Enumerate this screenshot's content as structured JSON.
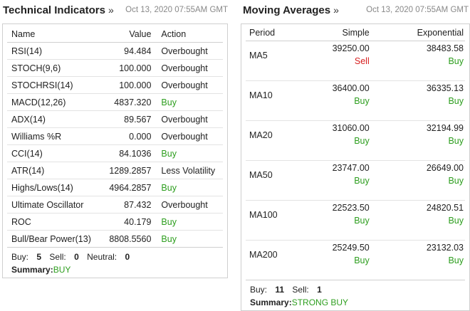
{
  "technical": {
    "title": "Technical Indicators",
    "arrow": "»",
    "timestamp": "Oct 13, 2020 07:55AM GMT",
    "headers": {
      "name": "Name",
      "value": "Value",
      "action": "Action"
    },
    "rows": [
      {
        "name": "RSI(14)",
        "value": "94.484",
        "action": "Overbought",
        "type": "neutral"
      },
      {
        "name": "STOCH(9,6)",
        "value": "100.000",
        "action": "Overbought",
        "type": "neutral"
      },
      {
        "name": "STOCHRSI(14)",
        "value": "100.000",
        "action": "Overbought",
        "type": "neutral"
      },
      {
        "name": "MACD(12,26)",
        "value": "4837.320",
        "action": "Buy",
        "type": "buy"
      },
      {
        "name": "ADX(14)",
        "value": "89.567",
        "action": "Overbought",
        "type": "neutral"
      },
      {
        "name": "Williams %R",
        "value": "0.000",
        "action": "Overbought",
        "type": "neutral"
      },
      {
        "name": "CCI(14)",
        "value": "84.1036",
        "action": "Buy",
        "type": "buy"
      },
      {
        "name": "ATR(14)",
        "value": "1289.2857",
        "action": "Less Volatility",
        "type": "neutral"
      },
      {
        "name": "Highs/Lows(14)",
        "value": "4964.2857",
        "action": "Buy",
        "type": "buy"
      },
      {
        "name": "Ultimate Oscillator",
        "value": "87.432",
        "action": "Overbought",
        "type": "neutral"
      },
      {
        "name": "ROC",
        "value": "40.179",
        "action": "Buy",
        "type": "buy"
      },
      {
        "name": "Bull/Bear Power(13)",
        "value": "8808.5560",
        "action": "Buy",
        "type": "buy"
      }
    ],
    "summary": {
      "buy_label": "Buy:",
      "buy": "5",
      "sell_label": "Sell:",
      "sell": "0",
      "neutral_label": "Neutral:",
      "neutral": "0",
      "summary_label": "Summary:",
      "result": "BUY"
    }
  },
  "moving": {
    "title": "Moving Averages",
    "arrow": "»",
    "timestamp": "Oct 13, 2020 07:55AM GMT",
    "headers": {
      "period": "Period",
      "simple": "Simple",
      "exponential": "Exponential"
    },
    "rows": [
      {
        "period": "MA5",
        "simple_value": "39250.00",
        "simple_signal": "Sell",
        "simple_type": "sell",
        "exp_value": "38483.58",
        "exp_signal": "Buy",
        "exp_type": "buy"
      },
      {
        "period": "MA10",
        "simple_value": "36400.00",
        "simple_signal": "Buy",
        "simple_type": "buy",
        "exp_value": "36335.13",
        "exp_signal": "Buy",
        "exp_type": "buy"
      },
      {
        "period": "MA20",
        "simple_value": "31060.00",
        "simple_signal": "Buy",
        "simple_type": "buy",
        "exp_value": "32194.99",
        "exp_signal": "Buy",
        "exp_type": "buy"
      },
      {
        "period": "MA50",
        "simple_value": "23747.00",
        "simple_signal": "Buy",
        "simple_type": "buy",
        "exp_value": "26649.00",
        "exp_signal": "Buy",
        "exp_type": "buy"
      },
      {
        "period": "MA100",
        "simple_value": "22523.50",
        "simple_signal": "Buy",
        "simple_type": "buy",
        "exp_value": "24820.51",
        "exp_signal": "Buy",
        "exp_type": "buy"
      },
      {
        "period": "MA200",
        "simple_value": "25249.50",
        "simple_signal": "Buy",
        "simple_type": "buy",
        "exp_value": "23132.03",
        "exp_signal": "Buy",
        "exp_type": "buy"
      }
    ],
    "summary": {
      "buy_label": "Buy:",
      "buy": "11",
      "sell_label": "Sell:",
      "sell": "1",
      "summary_label": "Summary:",
      "result": "STRONG BUY"
    }
  },
  "colors": {
    "buy": "#2d9e1e",
    "sell": "#d71f1f",
    "border": "#cfcfcf",
    "muted": "#888888"
  }
}
